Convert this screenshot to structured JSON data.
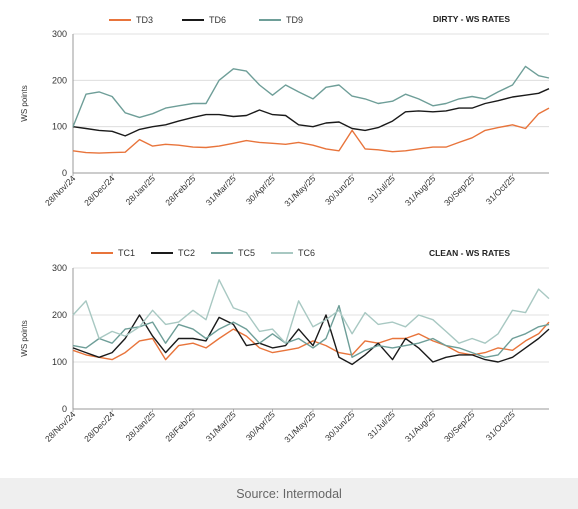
{
  "source": "Source: Intermodal",
  "chart_data": [
    {
      "type": "line",
      "title": "DIRTY - WS RATES",
      "ylabel": "WS points",
      "ylim": [
        0,
        300
      ],
      "yticks": [
        "0",
        "100",
        "200",
        "300"
      ],
      "grid": "horizontal",
      "legend_position": "top",
      "x_ticks": [
        "28/Nov/24",
        "28/Dec/24",
        "28/Jan/25",
        "28/Feb/25",
        "31/Mar/25",
        "30/Apr/25",
        "31/May/25",
        "30/Jun/25",
        "31/Jul/25",
        "31/Aug/25",
        "30/Sep/25",
        "31/Oct/25"
      ],
      "x": [
        "28/Nov/24",
        "08/Dec/24",
        "18/Dec/24",
        "28/Dec/24",
        "07/Jan/25",
        "18/Jan/25",
        "28/Jan/25",
        "07/Feb/25",
        "17/Feb/25",
        "28/Feb/25",
        "10/Mar/25",
        "20/Mar/25",
        "31/Mar/25",
        "10/Apr/25",
        "20/Apr/25",
        "30/Apr/25",
        "10/May/25",
        "20/May/25",
        "31/May/25",
        "10/Jun/25",
        "20/Jun/25",
        "30/Jun/25",
        "10/Jul/25",
        "20/Jul/25",
        "31/Jul/25",
        "10/Aug/25",
        "20/Aug/25",
        "31/Aug/25",
        "10/Sep/25",
        "20/Sep/25",
        "30/Sep/25",
        "10/Oct/25",
        "20/Oct/25",
        "31/Oct/25",
        "10/Nov/25",
        "20/Nov/25",
        "28/Nov/25"
      ],
      "series": [
        {
          "name": "TD3",
          "color": "#e8743b",
          "values": [
            48,
            44,
            43,
            44,
            45,
            72,
            58,
            62,
            60,
            56,
            55,
            58,
            64,
            70,
            66,
            64,
            62,
            66,
            60,
            52,
            48,
            92,
            52,
            50,
            46,
            48,
            52,
            56,
            56,
            66,
            76,
            92,
            98,
            104,
            96,
            128,
            140
          ]
        },
        {
          "name": "TD6",
          "color": "#1a1a1a",
          "values": [
            100,
            96,
            92,
            90,
            80,
            94,
            100,
            104,
            112,
            120,
            126,
            126,
            122,
            124,
            136,
            126,
            124,
            104,
            100,
            108,
            110,
            96,
            92,
            98,
            112,
            132,
            134,
            132,
            134,
            140,
            140,
            150,
            156,
            164,
            168,
            172,
            182
          ]
        },
        {
          "name": "TD9",
          "color": "#6e9e98",
          "values": [
            100,
            170,
            175,
            165,
            130,
            120,
            128,
            140,
            145,
            150,
            150,
            200,
            225,
            220,
            190,
            168,
            190,
            175,
            160,
            185,
            190,
            166,
            160,
            150,
            155,
            170,
            160,
            145,
            150,
            160,
            165,
            160,
            175,
            190,
            230,
            210,
            205
          ]
        }
      ]
    },
    {
      "type": "line",
      "title": "CLEAN - WS RATES",
      "ylabel": "WS points",
      "ylim": [
        0,
        300
      ],
      "yticks": [
        "0",
        "100",
        "200",
        "300"
      ],
      "grid": "horizontal",
      "legend_position": "top",
      "x_ticks": [
        "28/Nov/24",
        "28/Dec/24",
        "28/Jan/25",
        "28/Feb/25",
        "31/Mar/25",
        "30/Apr/25",
        "31/May/25",
        "30/Jun/25",
        "31/Jul/25",
        "31/Aug/25",
        "30/Sep/25",
        "31/Oct/25"
      ],
      "x": [
        "28/Nov/24",
        "08/Dec/24",
        "18/Dec/24",
        "28/Dec/24",
        "07/Jan/25",
        "18/Jan/25",
        "28/Jan/25",
        "07/Feb/25",
        "17/Feb/25",
        "28/Feb/25",
        "10/Mar/25",
        "20/Mar/25",
        "31/Mar/25",
        "10/Apr/25",
        "20/Apr/25",
        "30/Apr/25",
        "10/May/25",
        "20/May/25",
        "31/May/25",
        "10/Jun/25",
        "20/Jun/25",
        "30/Jun/25",
        "10/Jul/25",
        "20/Jul/25",
        "31/Jul/25",
        "10/Aug/25",
        "20/Aug/25",
        "31/Aug/25",
        "10/Sep/25",
        "20/Sep/25",
        "30/Sep/25",
        "10/Oct/25",
        "20/Oct/25",
        "31/Oct/25",
        "10/Nov/25",
        "20/Nov/25",
        "28/Nov/25"
      ],
      "series": [
        {
          "name": "TC1",
          "color": "#e8743b",
          "values": [
            125,
            115,
            110,
            105,
            120,
            145,
            150,
            105,
            135,
            140,
            130,
            150,
            170,
            155,
            130,
            120,
            125,
            130,
            145,
            135,
            120,
            115,
            145,
            140,
            150,
            150,
            160,
            145,
            135,
            120,
            115,
            120,
            130,
            125,
            145,
            160,
            185
          ]
        },
        {
          "name": "TC2",
          "color": "#1a1a1a",
          "values": [
            130,
            120,
            110,
            120,
            150,
            200,
            155,
            120,
            150,
            150,
            145,
            195,
            180,
            135,
            140,
            130,
            135,
            170,
            135,
            200,
            110,
            95,
            115,
            140,
            105,
            150,
            130,
            100,
            110,
            115,
            115,
            105,
            100,
            110,
            130,
            150,
            170
          ]
        },
        {
          "name": "TC5",
          "color": "#6e9e98",
          "values": [
            135,
            130,
            150,
            140,
            170,
            175,
            185,
            140,
            180,
            170,
            150,
            170,
            185,
            170,
            140,
            160,
            140,
            150,
            130,
            150,
            220,
            110,
            125,
            135,
            130,
            135,
            140,
            150,
            135,
            130,
            120,
            110,
            115,
            150,
            160,
            175,
            180
          ]
        },
        {
          "name": "TC6",
          "color": "#a8c8c2",
          "values": [
            200,
            230,
            150,
            165,
            155,
            175,
            210,
            180,
            185,
            210,
            190,
            275,
            215,
            205,
            165,
            170,
            140,
            230,
            175,
            190,
            210,
            160,
            205,
            180,
            185,
            175,
            200,
            190,
            165,
            140,
            150,
            140,
            160,
            210,
            205,
            255,
            235
          ]
        }
      ]
    }
  ]
}
